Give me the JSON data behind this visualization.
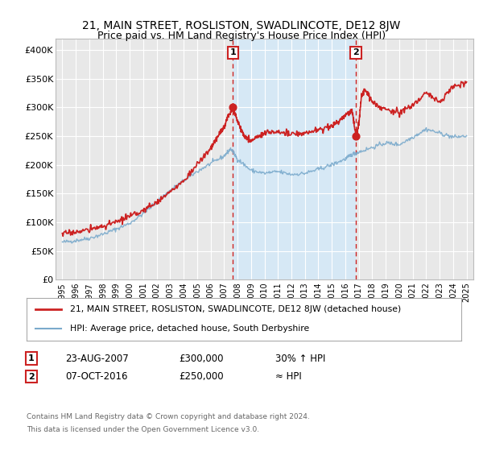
{
  "title": "21, MAIN STREET, ROSLISTON, SWADLINCOTE, DE12 8JW",
  "subtitle": "Price paid vs. HM Land Registry's House Price Index (HPI)",
  "footer1": "Contains HM Land Registry data © Crown copyright and database right 2024.",
  "footer2": "This data is licensed under the Open Government Licence v3.0.",
  "legend_red": "21, MAIN STREET, ROSLISTON, SWADLINCOTE, DE12 8JW (detached house)",
  "legend_blue": "HPI: Average price, detached house, South Derbyshire",
  "annotation1_label": "1",
  "annotation1_date": "23-AUG-2007",
  "annotation1_price": "£300,000",
  "annotation1_hpi": "30% ↑ HPI",
  "annotation2_label": "2",
  "annotation2_date": "07-OCT-2016",
  "annotation2_price": "£250,000",
  "annotation2_hpi": "≈ HPI",
  "marker1_x": 2007.65,
  "marker1_y": 300000,
  "marker2_x": 2016.78,
  "marker2_y": 250000,
  "xlim": [
    1994.5,
    2025.5
  ],
  "ylim": [
    0,
    420000
  ],
  "yticks": [
    0,
    50000,
    100000,
    150000,
    200000,
    250000,
    300000,
    350000,
    400000
  ],
  "ytick_labels": [
    "£0",
    "£50K",
    "£100K",
    "£150K",
    "£200K",
    "£250K",
    "£300K",
    "£350K",
    "£400K"
  ],
  "xtick_years": [
    1995,
    1996,
    1997,
    1998,
    1999,
    2000,
    2001,
    2002,
    2003,
    2004,
    2005,
    2006,
    2007,
    2008,
    2009,
    2010,
    2011,
    2012,
    2013,
    2014,
    2015,
    2016,
    2017,
    2018,
    2019,
    2020,
    2021,
    2022,
    2023,
    2024,
    2025
  ],
  "background_color": "#ffffff",
  "plot_bg_color": "#e8e8e8",
  "shade_color": "#d6e8f5",
  "grid_color": "#ffffff",
  "red_color": "#cc2222",
  "blue_color": "#7aaacc",
  "title_fontsize": 10,
  "subtitle_fontsize": 9
}
